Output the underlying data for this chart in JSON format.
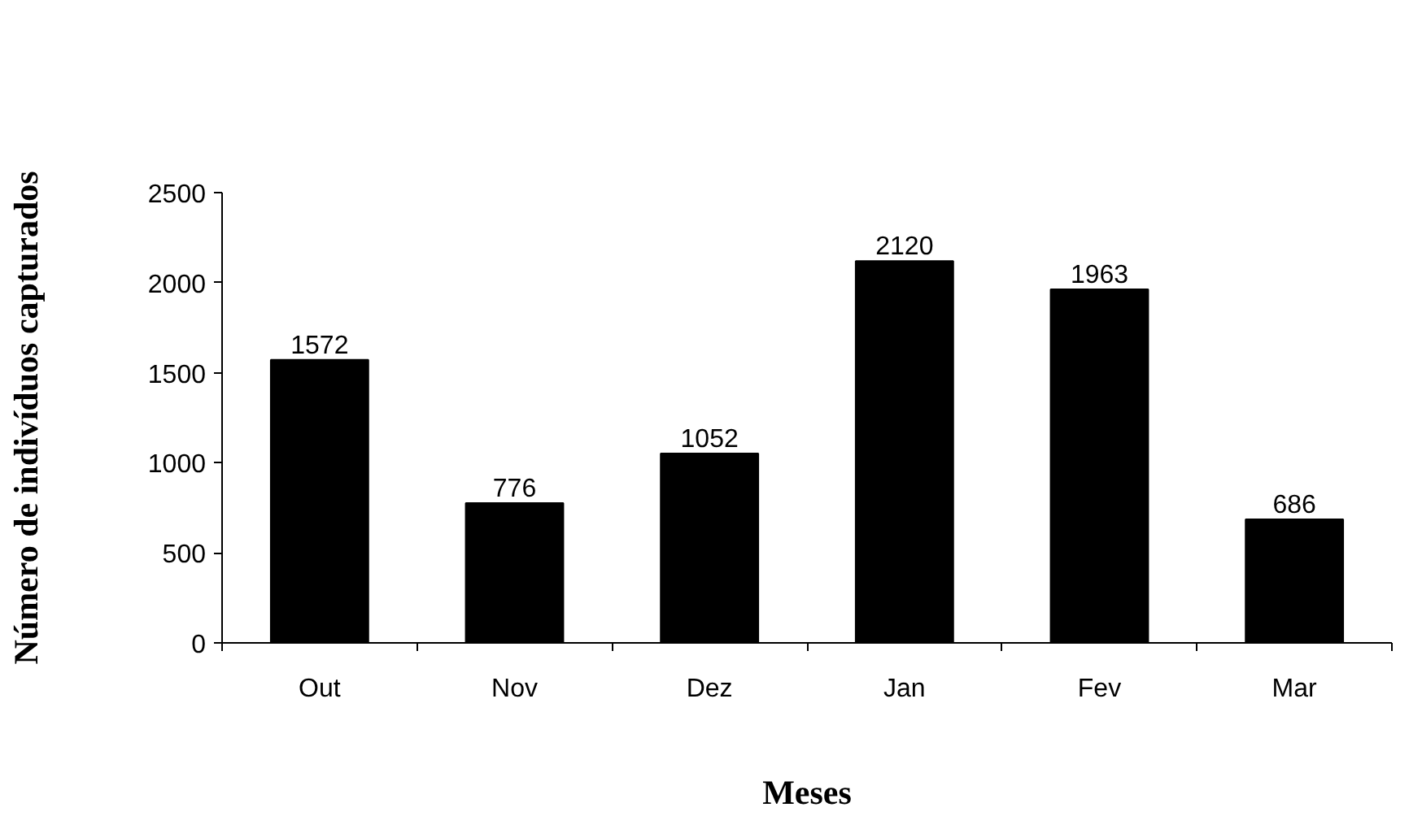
{
  "chart_data": {
    "type": "bar",
    "xlabel": "Meses",
    "ylabel": "Número de indivíduos capturados",
    "categories": [
      "Out",
      "Nov",
      "Dez",
      "Jan",
      "Fev",
      "Mar"
    ],
    "values": [
      1572,
      776,
      1052,
      2120,
      1963,
      686
    ],
    "color": "#000000",
    "ylim": [
      0,
      2500
    ],
    "yticks": [
      0,
      500,
      1000,
      1500,
      2000,
      2500
    ],
    "data_labels": true
  }
}
